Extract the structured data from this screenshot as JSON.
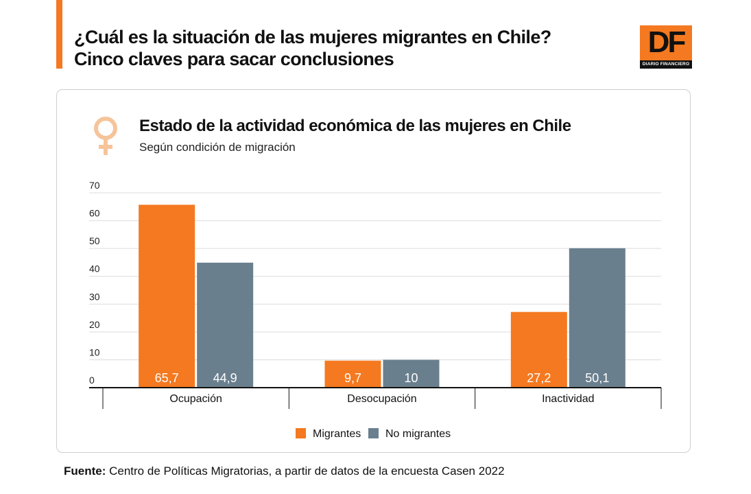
{
  "header": {
    "headline_line1": "¿Cuál es la situación de las mujeres migrantes en Chile?",
    "headline_line2": "Cinco claves para sacar conclusiones"
  },
  "logo": {
    "letters": "DF",
    "tagline": "DIARIO FINANCIERO"
  },
  "icon": "female-symbol-icon",
  "colors": {
    "accent": "#f47920",
    "migrantes": "#f47920",
    "no_migrantes": "#6a7f8e"
  },
  "chart_data": {
    "type": "bar",
    "title": "Estado de la actividad económica de las mujeres en Chile",
    "subtitle": "Según condición de migración",
    "xlabel": "",
    "ylabel": "",
    "categories": [
      "Ocupación",
      "Desocupación",
      "Inactividad"
    ],
    "series": [
      {
        "name": "Migrantes",
        "values": [
          65.7,
          9.7,
          27.2
        ],
        "labels": [
          "65,7",
          "9,7",
          "27,2"
        ]
      },
      {
        "name": "No migrantes",
        "values": [
          44.9,
          10,
          50.1
        ],
        "labels": [
          "44,9",
          "10",
          "50,1"
        ]
      }
    ],
    "ylim": [
      0,
      70
    ],
    "yticks": [
      0,
      10,
      20,
      30,
      40,
      50,
      60,
      70
    ],
    "grid": true,
    "legend": "bottom-center"
  },
  "source": {
    "label": "Fuente:",
    "text": " Centro de Políticas Migratorias, a partir de datos de la encuesta Casen 2022"
  }
}
